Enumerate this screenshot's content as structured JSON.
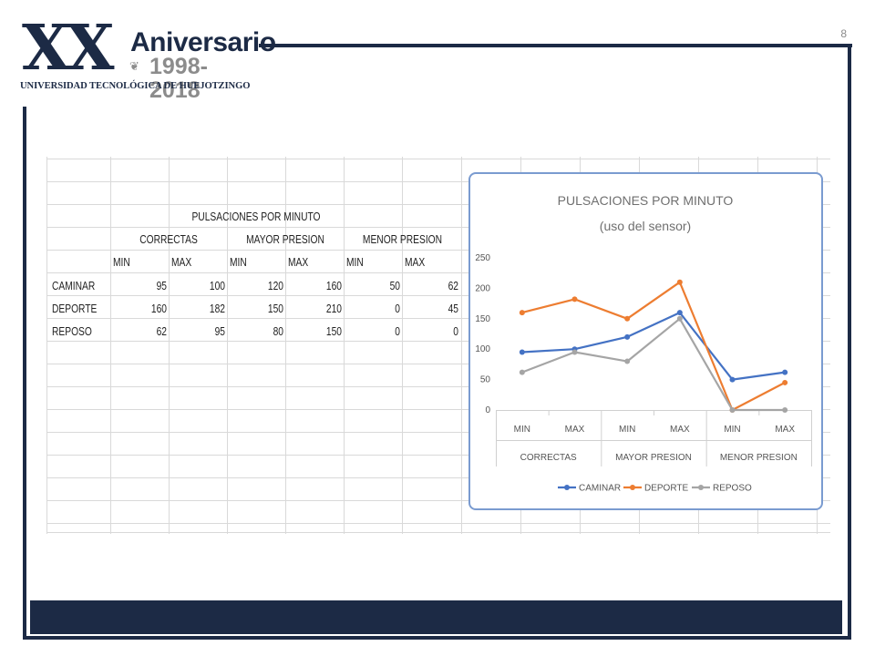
{
  "page_number": "8",
  "logo": {
    "big": "XX",
    "title": "Aniversario",
    "years": "1998-2018",
    "university": "UNIVERSIDAD TECNOLÓGICA DE HUEJOTZINGO"
  },
  "table": {
    "title": "PULSACIONES POR MINUTO",
    "groups": [
      "CORRECTAS",
      "MAYOR PRESION",
      "MENOR PRESION"
    ],
    "subheaders": [
      "MIN",
      "MAX",
      "MIN",
      "MAX",
      "MIN",
      "MAX"
    ],
    "rows": [
      {
        "label": "CAMINAR",
        "values": [
          "95",
          "100",
          "120",
          "160",
          "50",
          "62"
        ]
      },
      {
        "label": "DEPORTE",
        "values": [
          "160",
          "182",
          "150",
          "210",
          "0",
          "45"
        ]
      },
      {
        "label": "REPOSO",
        "values": [
          "62",
          "95",
          "80",
          "150",
          "0",
          "0"
        ]
      }
    ]
  },
  "chart_data": {
    "type": "line",
    "title": "PULSACIONES POR MINUTO",
    "subtitle": "(uso del sensor)",
    "categories": [
      "MIN",
      "MAX",
      "MIN",
      "MAX",
      "MIN",
      "MAX"
    ],
    "category_groups": [
      "CORRECTAS",
      "MAYOR PRESION",
      "MENOR PRESION"
    ],
    "ylim": [
      0,
      250
    ],
    "yticks": [
      "0",
      "50",
      "100",
      "150",
      "200",
      "250"
    ],
    "grid": false,
    "legend": "bottom",
    "series": [
      {
        "name": "CAMINAR",
        "color": "#4472c4",
        "values": [
          95,
          100,
          120,
          160,
          50,
          62
        ]
      },
      {
        "name": "DEPORTE",
        "color": "#ed7d31",
        "values": [
          160,
          182,
          150,
          210,
          0,
          45
        ]
      },
      {
        "name": "REPOSO",
        "color": "#a5a5a5",
        "values": [
          62,
          95,
          80,
          150,
          0,
          0
        ]
      }
    ]
  },
  "colors": {
    "brand_navy": "#1c2a45",
    "logo_gray": "#8c8c8c",
    "chart_border": "#7a9bd0"
  }
}
